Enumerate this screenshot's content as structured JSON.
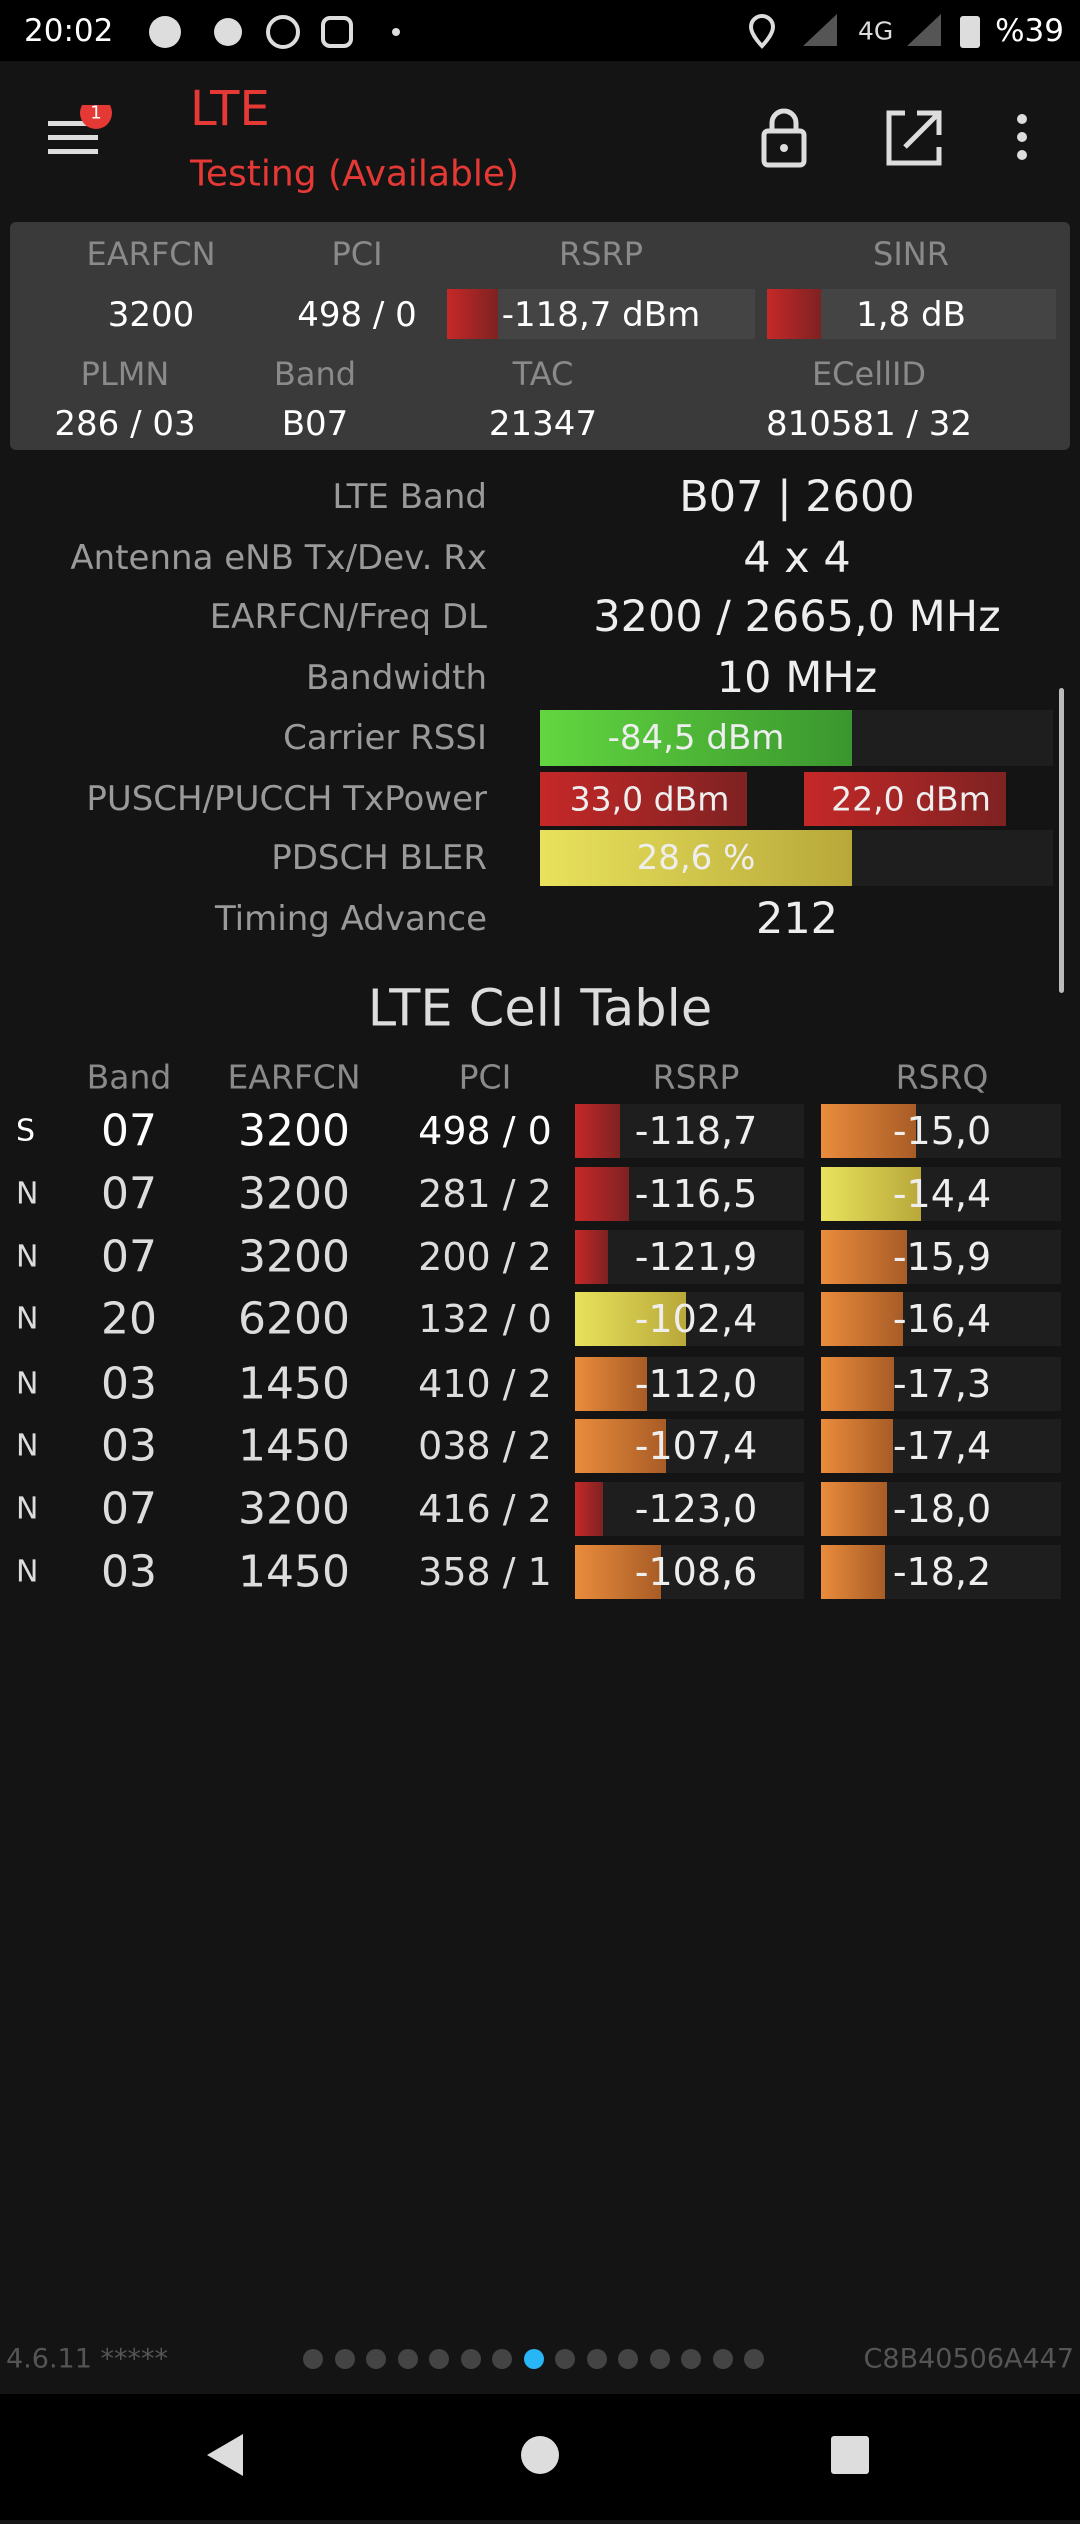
{
  "status_bar": {
    "time": "20:02",
    "network": "4G",
    "battery": "%39"
  },
  "header": {
    "title": "LTE",
    "subtitle": "Testing (Available)",
    "badge": "1"
  },
  "summary": {
    "labels": [
      "EARFCN",
      "PCI",
      "RSRP",
      "SINR"
    ],
    "values": [
      "3200",
      "498 / 0",
      "-118,7 dBm",
      "1,8 dB"
    ],
    "labels2": [
      "PLMN",
      "Band",
      "TAC",
      "ECellID"
    ],
    "values2": [
      "286 / 03",
      "B07",
      "21347",
      "810581 / 32"
    ]
  },
  "details": [
    {
      "label": "LTE Band",
      "values": [
        "B07 | 2600"
      ]
    },
    {
      "label": "Antenna eNB Tx/Dev. Rx",
      "values": [
        "4 x 4"
      ]
    },
    {
      "label": "EARFCN/Freq DL",
      "values": [
        "3200 / 2665,0 MHz"
      ]
    },
    {
      "label": "Bandwidth",
      "values": [
        "10 MHz"
      ]
    },
    {
      "label": "Carrier RSSI",
      "values": [
        "-84,5 dBm"
      ]
    },
    {
      "label": "PUSCH/PUCCH TxPower",
      "values": [
        "33,0 dBm",
        "22,0 dBm"
      ]
    },
    {
      "label": "PDSCH BLER",
      "values": [
        "28,6 %"
      ]
    },
    {
      "label": "Timing Advance",
      "values": [
        "212"
      ]
    }
  ],
  "cell_table": {
    "title": "LTE Cell Table",
    "columns": [
      "Band",
      "EARFCN",
      "PCI",
      "RSRP",
      "RSRQ"
    ],
    "rows": [
      [
        "S",
        "07",
        "3200",
        "498 / 0",
        "-118,7",
        "-15,0"
      ],
      [
        "N",
        "07",
        "3200",
        "281 / 2",
        "-116,5",
        "-14,4"
      ],
      [
        "N",
        "07",
        "3200",
        "200 / 2",
        "-121,9",
        "-15,9"
      ],
      [
        "N",
        "20",
        "6200",
        "132 / 0",
        "-102,4",
        "-16,4"
      ],
      [
        "N",
        "03",
        "1450",
        "410 / 2",
        "-112,0",
        "-17,3"
      ],
      [
        "N",
        "03",
        "1450",
        "038 / 2",
        "-107,4",
        "-17,4"
      ],
      [
        "N",
        "07",
        "3200",
        "416 / 2",
        "-123,0",
        "-18,0"
      ],
      [
        "N",
        "03",
        "1450",
        "358 / 1",
        "-108,6",
        "-18,2"
      ]
    ]
  },
  "footer": {
    "version": "4.6.11 *****",
    "device_id": "C8B40506A447",
    "page_count": 15,
    "active_page": 7
  }
}
